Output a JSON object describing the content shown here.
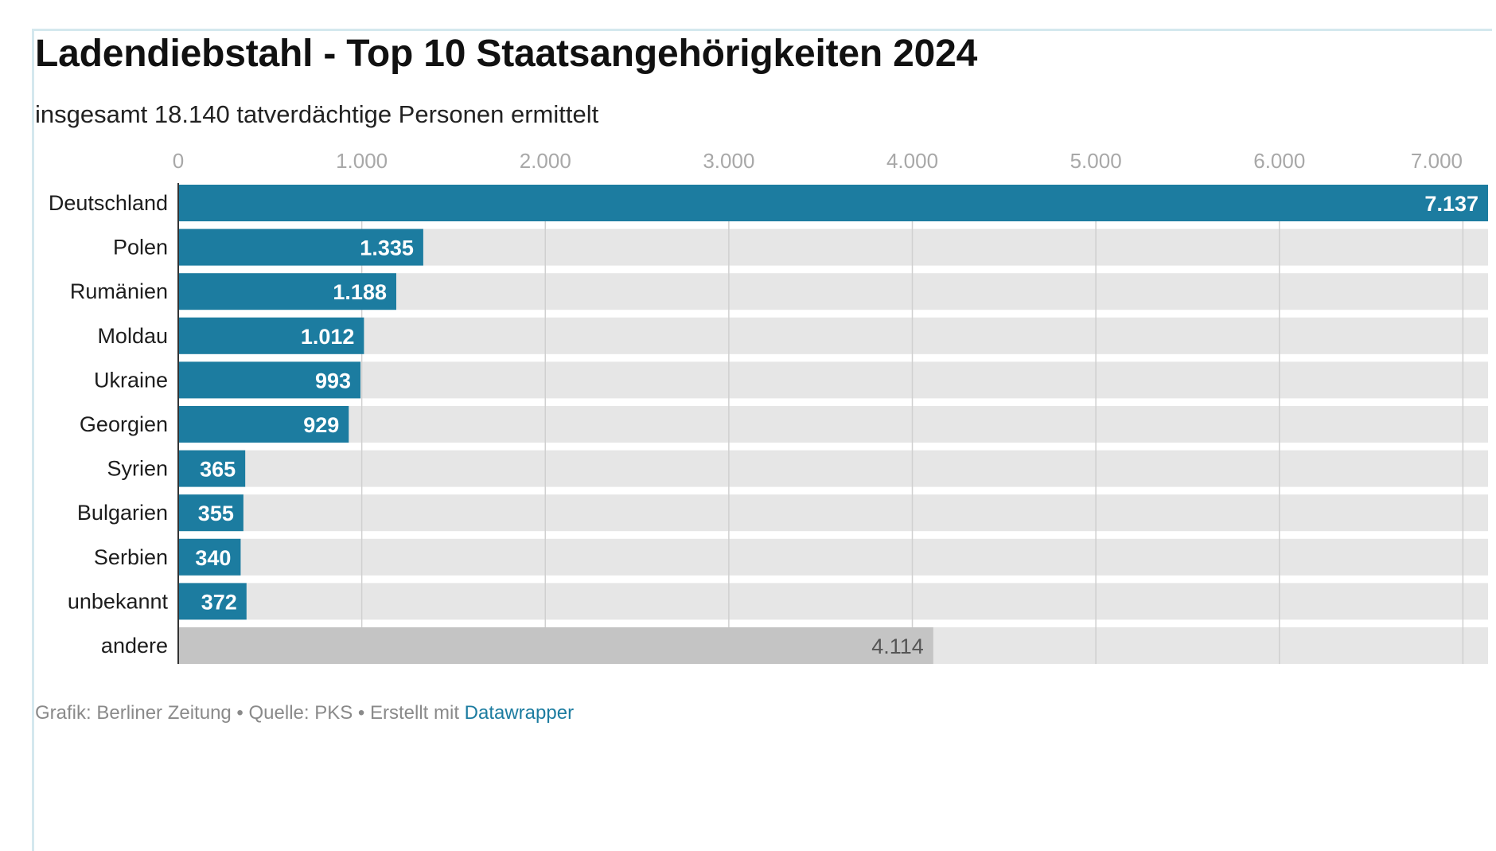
{
  "title": "Ladendiebstahl - Top 10 Staatsangehörigkeiten 2024",
  "subtitle": "insgesamt 18.140 tatverdächtige Personen ermittelt",
  "footer": {
    "text": "Grafik: Berliner Zeitung • Quelle: PKS • Erstellt mit ",
    "link": "Datawrapper"
  },
  "colors": {
    "bar": "#1c7ca0",
    "bar_other": "#c4c4c4",
    "track": "#e6e6e6",
    "grid": "#d0d0d0"
  },
  "chart_data": {
    "type": "bar",
    "orientation": "horizontal",
    "title": "Ladendiebstahl - Top 10 Staatsangehörigkeiten 2024",
    "subtitle": "insgesamt 18.140 tatverdächtige Personen ermittelt",
    "categories": [
      "Deutschland",
      "Polen",
      "Rumänien",
      "Moldau",
      "Ukraine",
      "Georgien",
      "Syrien",
      "Bulgarien",
      "Serbien",
      "unbekannt",
      "andere"
    ],
    "values": [
      7137,
      1335,
      1188,
      1012,
      993,
      929,
      365,
      355,
      340,
      372,
      4114
    ],
    "value_labels": [
      "7.137",
      "1.335",
      "1.188",
      "1.012",
      "993",
      "929",
      "365",
      "355",
      "340",
      "372",
      "4.114"
    ],
    "xlim": [
      0,
      7137
    ],
    "xticks": [
      0,
      1000,
      2000,
      3000,
      4000,
      5000,
      6000,
      7000
    ],
    "xtick_labels": [
      "0",
      "1.000",
      "2.000",
      "3.000",
      "4.000",
      "5.000",
      "6.000",
      "7.000"
    ],
    "grid": true,
    "xlabel": "",
    "ylabel": ""
  }
}
